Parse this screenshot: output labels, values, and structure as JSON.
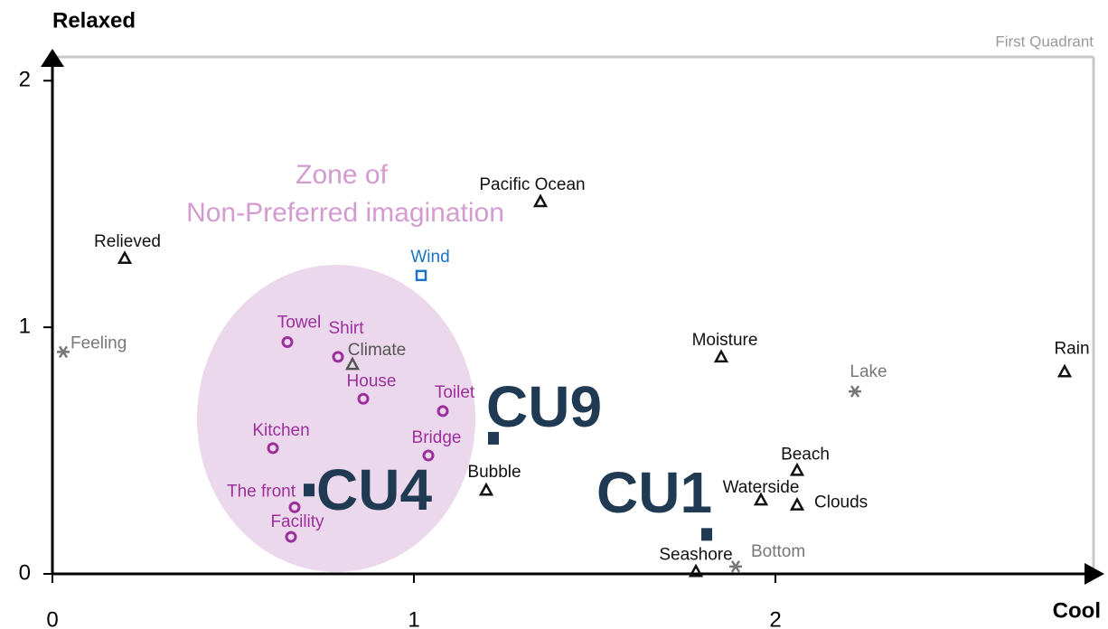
{
  "chart_data": {
    "type": "scatter",
    "y_label": "Relaxed",
    "x_label": "Cool",
    "quadrant_label": "First Quadrant",
    "zone_label": [
      "Zone of",
      "Non-Preferred imagination"
    ],
    "xlim": [
      0,
      2.88
    ],
    "ylim": [
      0,
      2.1
    ],
    "xticks": [
      0,
      1,
      2
    ],
    "yticks": [
      0,
      1,
      2
    ],
    "points": [
      {
        "label": "Relieved",
        "x": 0.2,
        "y": 1.28,
        "marker": "triangle",
        "color": "#111111"
      },
      {
        "label": "Feeling",
        "x": 0.03,
        "y": 0.9,
        "marker": "asterisk",
        "color": "#777777"
      },
      {
        "label": "Pacific Ocean",
        "x": 1.35,
        "y": 1.51,
        "marker": "triangle",
        "color": "#111111"
      },
      {
        "label": "Wind",
        "x": 1.02,
        "y": 1.21,
        "marker": "square",
        "color": "#1a73c4"
      },
      {
        "label": "Towel",
        "x": 0.65,
        "y": 0.94,
        "marker": "circle",
        "color": "#9b2f9b"
      },
      {
        "label": "Shirt",
        "x": 0.79,
        "y": 0.88,
        "marker": "circle",
        "color": "#9b2f9b"
      },
      {
        "label": "Climate",
        "x": 0.83,
        "y": 0.85,
        "marker": "triangle",
        "color": "#555555"
      },
      {
        "label": "House",
        "x": 0.86,
        "y": 0.71,
        "marker": "circle",
        "color": "#9b2f9b"
      },
      {
        "label": "Toilet",
        "x": 1.08,
        "y": 0.66,
        "marker": "circle",
        "color": "#9b2f9b"
      },
      {
        "label": "Kitchen",
        "x": 0.61,
        "y": 0.51,
        "marker": "circle",
        "color": "#9b2f9b"
      },
      {
        "label": "Bridge",
        "x": 1.04,
        "y": 0.48,
        "marker": "circle",
        "color": "#9b2f9b"
      },
      {
        "label": "The front",
        "x": 0.67,
        "y": 0.27,
        "marker": "circle",
        "color": "#9b2f9b"
      },
      {
        "label": "Facility",
        "x": 0.66,
        "y": 0.15,
        "marker": "circle",
        "color": "#9b2f9b"
      },
      {
        "label": "Bubble",
        "x": 1.2,
        "y": 0.34,
        "marker": "triangle",
        "color": "#111111"
      },
      {
        "label": "CU4",
        "x": 0.71,
        "y": 0.34,
        "marker": "cu",
        "color": "#1f3a52"
      },
      {
        "label": "CU9",
        "x": 1.22,
        "y": 0.55,
        "marker": "cu",
        "color": "#1f3a52"
      },
      {
        "label": "CU1",
        "x": 1.81,
        "y": 0.16,
        "marker": "cu",
        "color": "#1f3a52"
      },
      {
        "label": "Moisture",
        "x": 1.85,
        "y": 0.88,
        "marker": "triangle",
        "color": "#111111"
      },
      {
        "label": "Lake",
        "x": 2.22,
        "y": 0.74,
        "marker": "asterisk",
        "color": "#777777"
      },
      {
        "label": "Rain",
        "x": 2.8,
        "y": 0.82,
        "marker": "triangle",
        "color": "#111111"
      },
      {
        "label": "Beach",
        "x": 2.06,
        "y": 0.42,
        "marker": "triangle",
        "color": "#111111"
      },
      {
        "label": "Waterside",
        "x": 1.96,
        "y": 0.3,
        "marker": "triangle",
        "color": "#111111"
      },
      {
        "label": "Clouds",
        "x": 2.06,
        "y": 0.28,
        "marker": "triangle",
        "color": "#111111"
      },
      {
        "label": "Seashore",
        "x": 1.78,
        "y": 0.01,
        "marker": "triangle",
        "color": "#111111"
      },
      {
        "label": "Bottom",
        "x": 1.89,
        "y": 0.03,
        "marker": "asterisk",
        "color": "#777777"
      }
    ]
  }
}
